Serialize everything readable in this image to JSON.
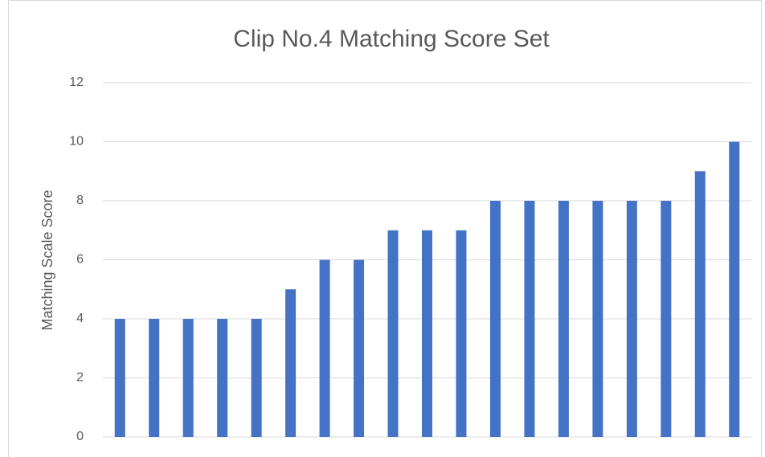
{
  "chart_data": {
    "type": "bar",
    "title": "Clip No.4 Matching Score Set",
    "y_label": "Matching Scale Score",
    "categories": [
      null,
      null,
      null,
      null,
      null,
      null,
      null,
      null,
      null,
      null,
      null,
      null,
      null,
      null,
      null,
      null,
      null,
      null,
      null
    ],
    "values": [
      4,
      4,
      4,
      4,
      4,
      5,
      6,
      6,
      7,
      7,
      7,
      8,
      8,
      8,
      8,
      8,
      8,
      9,
      10
    ],
    "color": "#4472c4",
    "ylim": [
      0,
      12
    ],
    "yticks": [
      0,
      2,
      4,
      6,
      8,
      10,
      12
    ],
    "grid": true
  }
}
